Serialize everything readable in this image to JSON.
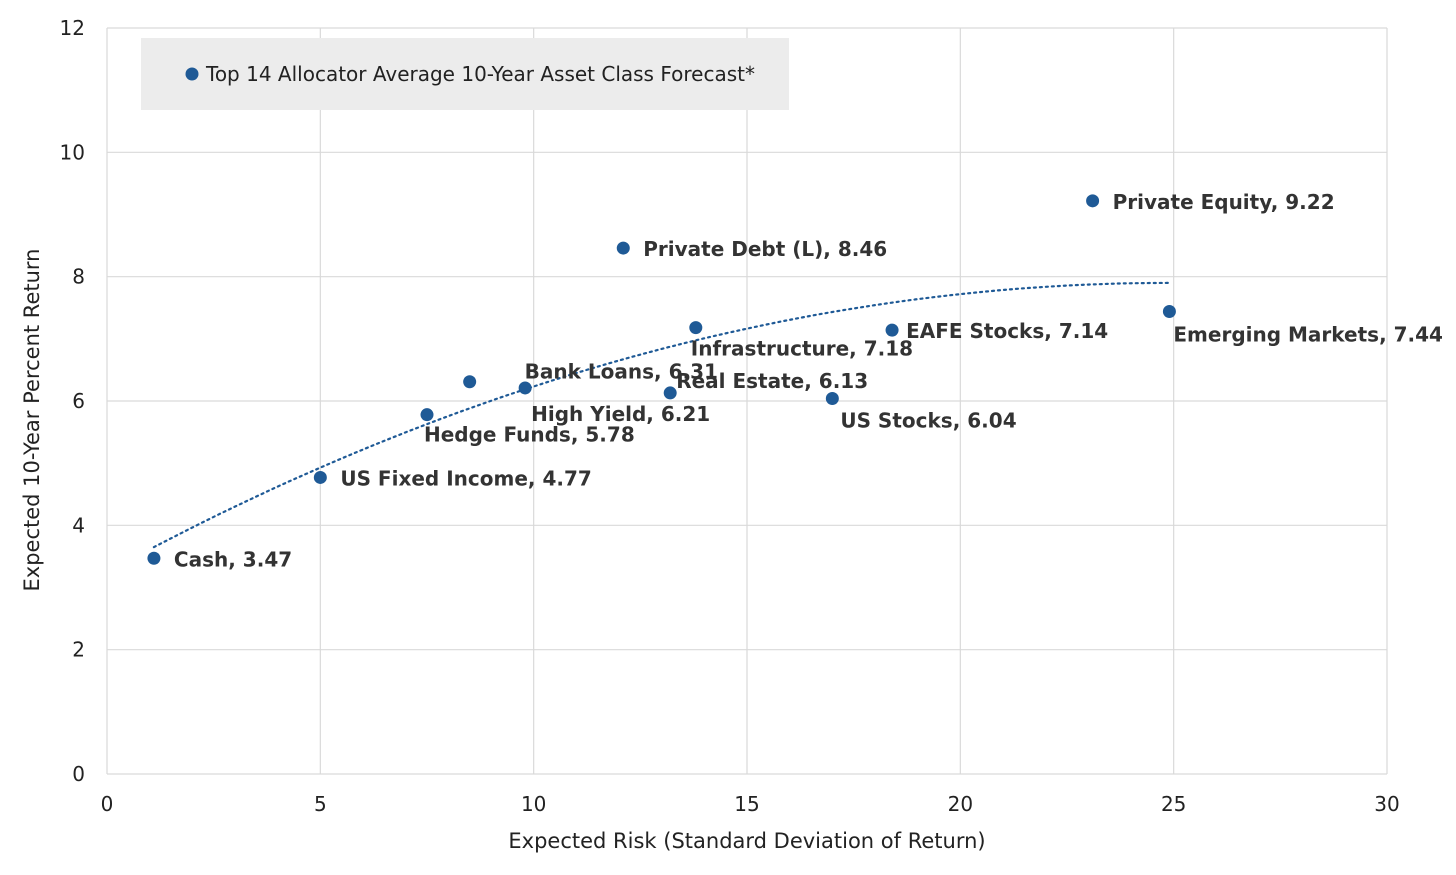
{
  "chart_data": {
    "type": "scatter",
    "title": "",
    "xlabel": "Expected Risk (Standard Deviation of Return)",
    "ylabel": "Expected 10-Year Percent Return",
    "xlim": [
      0,
      30
    ],
    "ylim": [
      0,
      12
    ],
    "x_ticks": [
      0,
      5,
      10,
      15,
      20,
      25,
      30
    ],
    "y_ticks": [
      0,
      2,
      4,
      6,
      8,
      10,
      12
    ],
    "grid": true,
    "legend_position": "top-left",
    "marker_color": "#1f5a96",
    "trendline": {
      "style": "dotted",
      "color": "#1f5a96",
      "x_range": [
        1.1,
        24.9
      ],
      "y_range": [
        3.65,
        7.9
      ]
    },
    "series": [
      {
        "name": "Top 14 Allocator Average 10-Year Asset Class Forecast*",
        "points": [
          {
            "label": "Cash, 3.47",
            "x": 1.1,
            "y": 3.47
          },
          {
            "label": "US Fixed Income, 4.77",
            "x": 5.0,
            "y": 4.77
          },
          {
            "label": "Hedge Funds, 5.78",
            "x": 7.5,
            "y": 5.78
          },
          {
            "label": "Bank Loans, 6.31",
            "x": 8.5,
            "y": 6.31
          },
          {
            "label": "High Yield, 6.21",
            "x": 9.8,
            "y": 6.21
          },
          {
            "label": "Private Debt (L), 8.46",
            "x": 12.1,
            "y": 8.46
          },
          {
            "label": "Real Estate, 6.13",
            "x": 13.2,
            "y": 6.13
          },
          {
            "label": "Infrastructure, 7.18",
            "x": 13.8,
            "y": 7.18
          },
          {
            "label": "US Stocks, 6.04",
            "x": 17.0,
            "y": 6.04
          },
          {
            "label": "EAFE Stocks, 7.14",
            "x": 18.4,
            "y": 7.14
          },
          {
            "label": "Private Equity, 9.22",
            "x": 23.1,
            "y": 9.22
          },
          {
            "label": "Emerging Markets, 7.44",
            "x": 24.9,
            "y": 7.44
          }
        ]
      }
    ]
  }
}
